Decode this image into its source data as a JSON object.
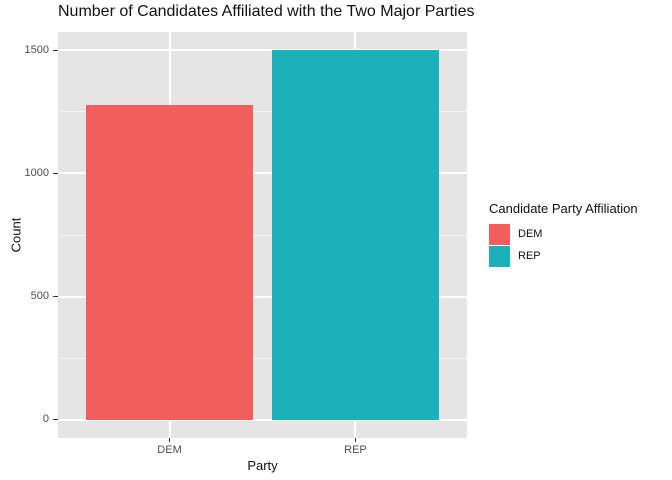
{
  "chart_data": {
    "type": "bar",
    "title": "Number of Candidates Affiliated with the Two Major Parties",
    "xlabel": "Party",
    "ylabel": "Count",
    "categories": [
      "DEM",
      "REP"
    ],
    "values": [
      1277,
      1500
    ],
    "bar_colors": [
      "#F15E5C",
      "#1AB2B8"
    ],
    "ylim": [
      0,
      1500
    ],
    "yticks_major": [
      0,
      500,
      1000,
      1500
    ],
    "yticks_minor": [
      250,
      750,
      1250
    ],
    "grid": "on",
    "panel_background": "#E5E5E5",
    "gridline_color": "#FFFFFF",
    "legend": {
      "position": "right",
      "title": "Candidate Party Affiliation",
      "entries": [
        {
          "label": "DEM",
          "color": "#F15E5C"
        },
        {
          "label": "REP",
          "color": "#1AB2B8"
        }
      ]
    }
  }
}
